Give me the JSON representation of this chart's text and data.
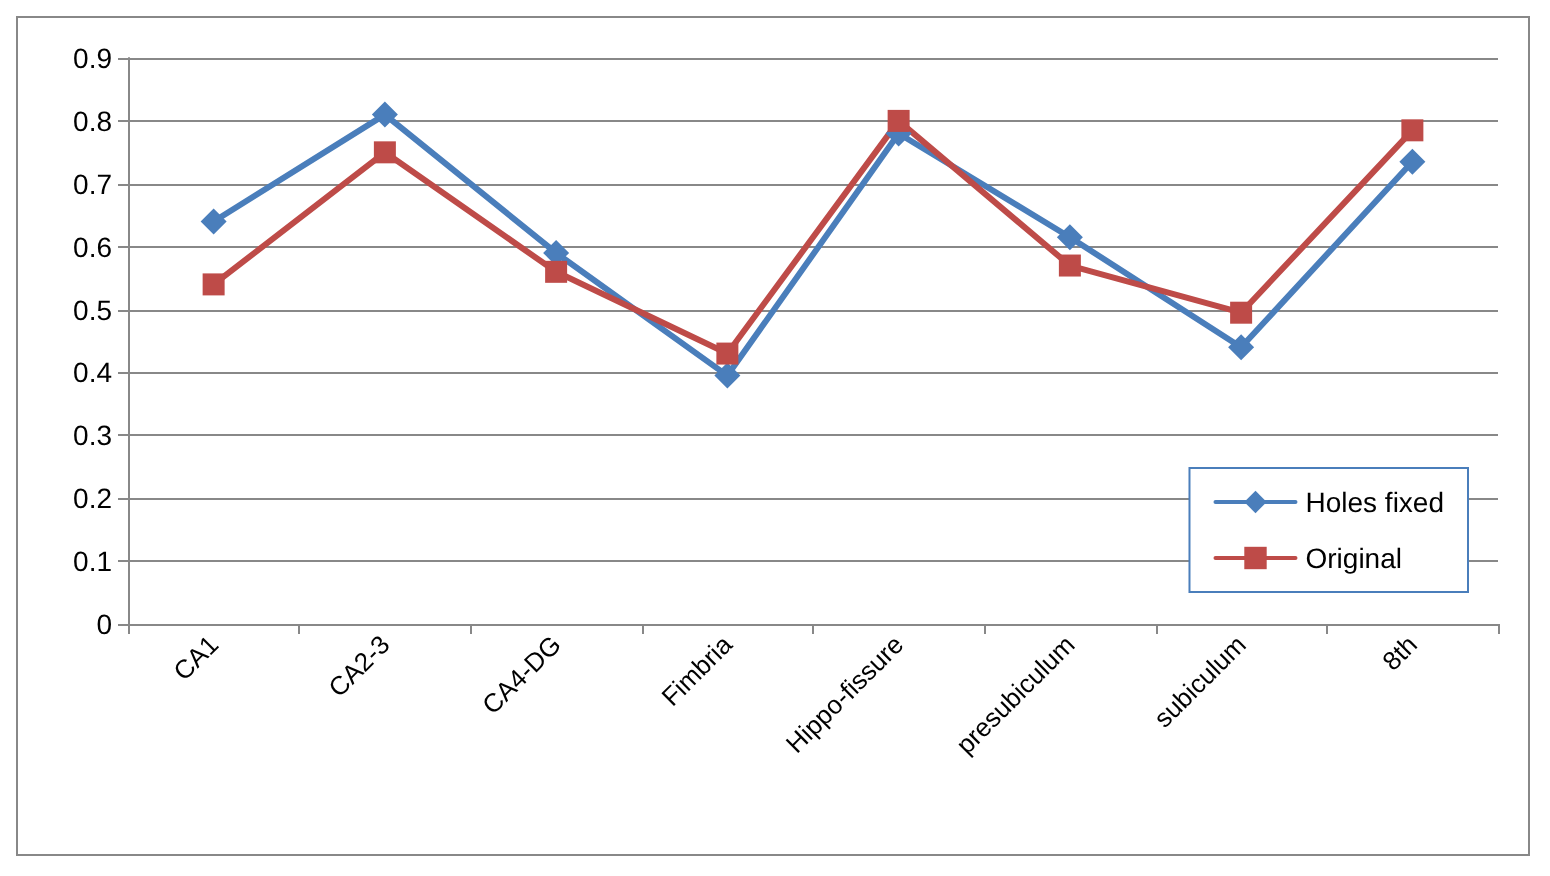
{
  "chart_data": {
    "type": "line",
    "categories": [
      "CA1",
      "CA2-3",
      "CA4-DG",
      "Fimbria",
      "Hippo-fissure",
      "presubiculum",
      "subiculum",
      "8th"
    ],
    "series": [
      {
        "name": "Holes fixed",
        "color": "#4a7ebb",
        "marker": "diamond",
        "values": [
          0.64,
          0.81,
          0.59,
          0.395,
          0.78,
          0.615,
          0.44,
          0.735
        ]
      },
      {
        "name": "Original",
        "color": "#be4b48",
        "marker": "square",
        "values": [
          0.54,
          0.75,
          0.56,
          0.43,
          0.8,
          0.57,
          0.495,
          0.785
        ]
      }
    ],
    "ylim": [
      0,
      0.9
    ],
    "yticks": [
      0,
      0.1,
      0.2,
      0.3,
      0.4,
      0.5,
      0.6,
      0.7,
      0.8,
      0.9
    ],
    "grid": "y",
    "legend": "right",
    "line_style": "solid"
  }
}
